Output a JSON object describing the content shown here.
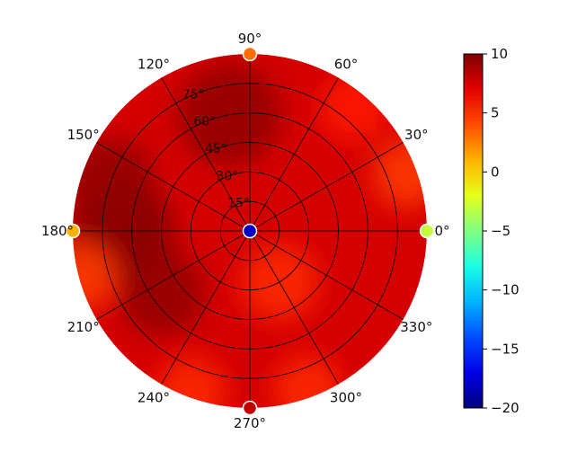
{
  "chart_data": {
    "type": "heatmap",
    "projection": "polar",
    "title": "",
    "angular_ticks": [
      "0°",
      "30°",
      "60°",
      "90°",
      "120°",
      "150°",
      "180°",
      "210°",
      "240°",
      "270°",
      "300°",
      "330°"
    ],
    "radial_ticks": [
      "15°",
      "30°",
      "45°",
      "60°",
      "75°"
    ],
    "radial_tick_values": [
      15,
      30,
      45,
      60,
      75
    ],
    "radial_range": [
      0,
      90
    ],
    "radial_ticks_angle_deg": 112.5,
    "grid": true,
    "colormap": "jet",
    "colorbar": {
      "range": [
        -20,
        10
      ],
      "ticks": [
        10,
        5,
        0,
        -5,
        -10,
        -15,
        -20
      ],
      "tick_labels": [
        "10",
        "5",
        "0",
        "−5",
        "−10",
        "−15",
        "−20"
      ],
      "placement": "right"
    },
    "field": {
      "background_value": 7.5,
      "features": [
        {
          "azimuth_deg": 180,
          "radius_deg": 65,
          "value": 10,
          "spread_deg": 12
        },
        {
          "azimuth_deg": 160,
          "radius_deg": 75,
          "value": 9.5,
          "spread_deg": 10
        },
        {
          "azimuth_deg": 100,
          "radius_deg": 60,
          "value": 9.5,
          "spread_deg": 12
        },
        {
          "azimuth_deg": 215,
          "radius_deg": 55,
          "value": 9.5,
          "spread_deg": 10
        },
        {
          "azimuth_deg": 300,
          "radius_deg": 30,
          "value": 5,
          "spread_deg": 9
        },
        {
          "azimuth_deg": 20,
          "radius_deg": 85,
          "value": 4.5,
          "spread_deg": 8
        },
        {
          "azimuth_deg": 195,
          "radius_deg": 88,
          "value": 4.5,
          "spread_deg": 8
        },
        {
          "azimuth_deg": 250,
          "radius_deg": 87,
          "value": 5,
          "spread_deg": 8
        },
        {
          "azimuth_deg": 290,
          "radius_deg": 86,
          "value": 5,
          "spread_deg": 8
        },
        {
          "azimuth_deg": 50,
          "radius_deg": 82,
          "value": 5.5,
          "spread_deg": 8
        }
      ]
    },
    "markers": [
      {
        "azimuth_deg": 0,
        "radius_deg": 0,
        "value": -18
      },
      {
        "azimuth_deg": 0,
        "radius_deg": 90,
        "value": -3
      },
      {
        "azimuth_deg": 90,
        "radius_deg": 90,
        "value": 3
      },
      {
        "azimuth_deg": 180,
        "radius_deg": 90,
        "value": 1
      },
      {
        "azimuth_deg": 270,
        "radius_deg": 90,
        "value": 8
      }
    ]
  }
}
